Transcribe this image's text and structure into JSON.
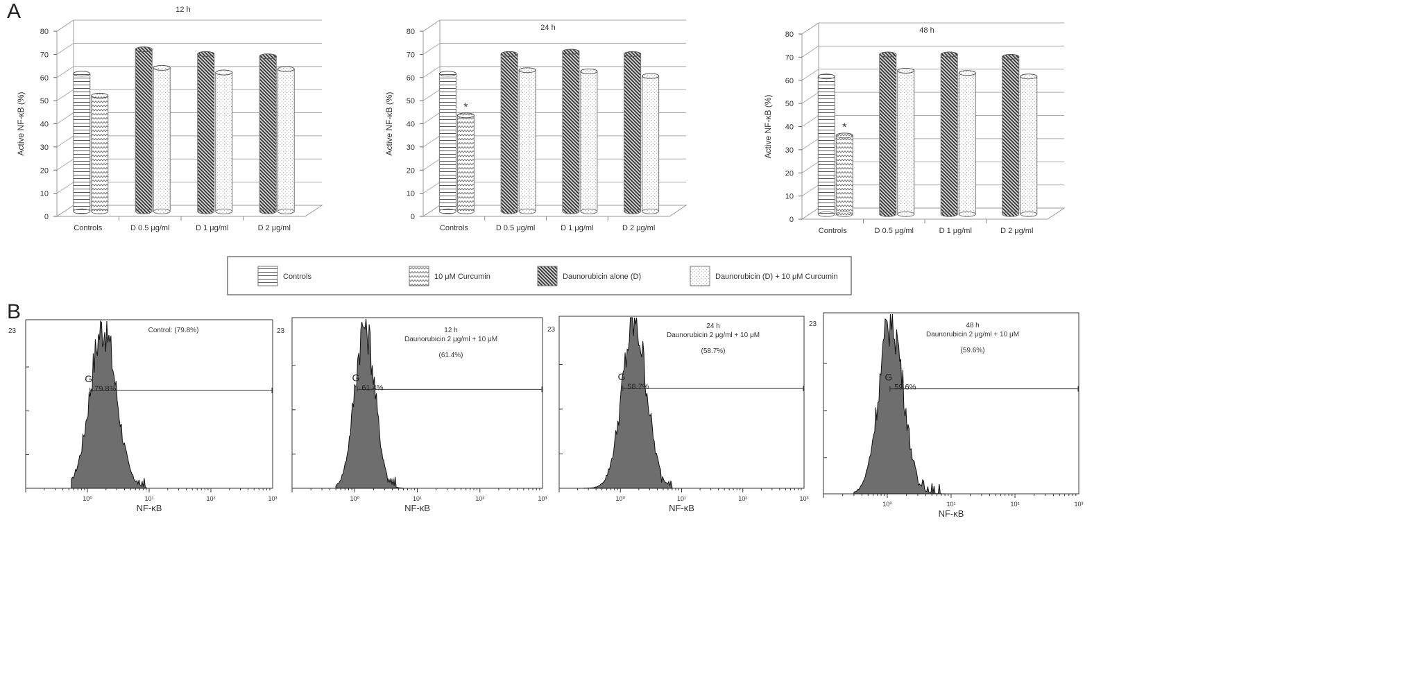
{
  "panels": {
    "a": "A",
    "b": "B"
  },
  "legend": {
    "items": [
      {
        "label": "Controls",
        "pattern": "horiz"
      },
      {
        "label": "10 μM Curcumin",
        "pattern": "zigzag"
      },
      {
        "label": "Daunorubicin alone (D)",
        "pattern": "diag"
      },
      {
        "label": "Daunorubicin (D) + 10 μM Curcumin",
        "pattern": "dots"
      }
    ]
  },
  "chart_data": [
    {
      "type": "bar",
      "title": "12 h",
      "ylabel": "Active NF-κB (%)",
      "xlabel": "",
      "ylim": [
        0,
        80
      ],
      "yticks": [
        0,
        10,
        20,
        30,
        40,
        50,
        60,
        70,
        80
      ],
      "categories": [
        "Controls",
        "D 0.5 μg/ml",
        "D 1 μg/ml",
        "D 2 μg/ml"
      ],
      "series": [
        {
          "name": "Controls",
          "values": [
            59.5,
            null,
            null,
            null
          ]
        },
        {
          "name": "10 μM Curcumin",
          "values": [
            50,
            null,
            null,
            null
          ]
        },
        {
          "name": "Daunorubicin alone (D)",
          "values": [
            null,
            70,
            68,
            67
          ]
        },
        {
          "name": "Daunorubicin (D) + 10 μM Curcumin",
          "values": [
            null,
            62,
            60,
            61.5
          ]
        }
      ],
      "annotations": []
    },
    {
      "type": "bar",
      "title": "24 h",
      "ylabel": "Active NF-κB (%)",
      "xlabel": "",
      "ylim": [
        0,
        80
      ],
      "yticks": [
        0,
        10,
        20,
        30,
        40,
        50,
        60,
        70,
        80
      ],
      "categories": [
        "Controls",
        "D 0.5 μg/ml",
        "D 1 μg/ml",
        "D 2 μg/ml"
      ],
      "series": [
        {
          "name": "Controls",
          "values": [
            59.5,
            null,
            null,
            null
          ]
        },
        {
          "name": "10 μM Curcumin",
          "values": [
            41.5,
            null,
            null,
            null
          ]
        },
        {
          "name": "Daunorubicin alone (D)",
          "values": [
            null,
            68,
            69,
            68
          ]
        },
        {
          "name": "Daunorubicin (D) + 10 μM Curcumin",
          "values": [
            null,
            61,
            60.5,
            58.5
          ]
        }
      ],
      "annotations": [
        {
          "text": "*",
          "category": "Controls",
          "series": "10 μM Curcumin"
        }
      ]
    },
    {
      "type": "bar",
      "title": "48 h",
      "ylabel": "Active NF-κB (%)",
      "xlabel": "",
      "ylim": [
        0,
        80
      ],
      "yticks": [
        0,
        10,
        20,
        30,
        40,
        50,
        60,
        70,
        80
      ],
      "categories": [
        "Controls",
        "D 0.5 μg/ml",
        "D 1 μg/ml",
        "D 2 μg/ml"
      ],
      "series": [
        {
          "name": "Controls",
          "values": [
            59.5,
            null,
            null,
            null
          ]
        },
        {
          "name": "10 μM Curcumin",
          "values": [
            34,
            null,
            null,
            null
          ]
        },
        {
          "name": "Daunorubicin alone (D)",
          "values": [
            null,
            69,
            69,
            68
          ]
        },
        {
          "name": "Daunorubicin (D) + 10 μM Curcumin",
          "values": [
            null,
            62,
            61,
            59.5
          ]
        }
      ],
      "annotations": [
        {
          "text": "*",
          "category": "Controls",
          "series": "10 μM Curcumin"
        }
      ]
    },
    {
      "type": "area",
      "title": "",
      "header_lines": [
        "Control: (79.8%)"
      ],
      "ytop_label": "23",
      "xlabel": "NF-κB",
      "xscale": "log",
      "xlim": [
        0.1,
        1000
      ],
      "xticks": [
        "10⁰",
        "10¹",
        "10²",
        "10³"
      ],
      "histogram": {
        "peak_x": 1.8,
        "spread_decades": 0.21,
        "min_x": 0.55,
        "max_x": 9,
        "peak_fraction": 1.0
      },
      "gate": {
        "label": "G",
        "percent_label": "79.8%",
        "from_x": 1.1,
        "to_x": 1000
      }
    },
    {
      "type": "area",
      "title": "",
      "header_lines": [
        "12 h",
        "Daunorubicin 2 μg/ml + 10 μM",
        "(61.4%)"
      ],
      "ytop_label": "23",
      "xlabel": "NF-κB",
      "xscale": "log",
      "xlim": [
        0.1,
        1000
      ],
      "xticks": [
        "10⁰",
        "10¹",
        "10²",
        "10³"
      ],
      "histogram": {
        "peak_x": 1.45,
        "spread_decades": 0.16,
        "min_x": 0.5,
        "max_x": 6,
        "peak_fraction": 1.0
      },
      "gate": {
        "label": "G",
        "percent_label": "61.4%",
        "from_x": 1.1,
        "to_x": 1000
      }
    },
    {
      "type": "area",
      "title": "",
      "header_lines": [
        "24 h",
        "Daunorubicin 2 μg/ml + 10 μM",
        "(58.7%)"
      ],
      "ytop_label": "23",
      "xlabel": "NF-κB",
      "xscale": "log",
      "xlim": [
        0.1,
        1000
      ],
      "xticks": [
        "10⁰",
        "10¹",
        "10²",
        "10³"
      ],
      "histogram": {
        "peak_x": 1.7,
        "spread_decades": 0.2,
        "min_x": 0.25,
        "max_x": 7,
        "peak_fraction": 1.0
      },
      "gate": {
        "label": "G",
        "percent_label": "58.7%",
        "from_x": 1.1,
        "to_x": 1000
      }
    },
    {
      "type": "area",
      "title": "",
      "header_lines": [
        "48 h",
        "Daunorubicin 2 μg/ml + 10 μM",
        "(59.6%)"
      ],
      "ytop_label": "23",
      "xlabel": "NF-κB",
      "xscale": "log",
      "xlim": [
        0.1,
        1000
      ],
      "xticks": [
        "10⁰",
        "10¹",
        "10²",
        "10³"
      ],
      "histogram": {
        "peak_x": 1.15,
        "spread_decades": 0.19,
        "min_x": 0.3,
        "max_x": 8,
        "peak_fraction": 1.0
      },
      "gate": {
        "label": "G",
        "percent_label": "59.6%",
        "from_x": 1.1,
        "to_x": 1000
      }
    }
  ]
}
